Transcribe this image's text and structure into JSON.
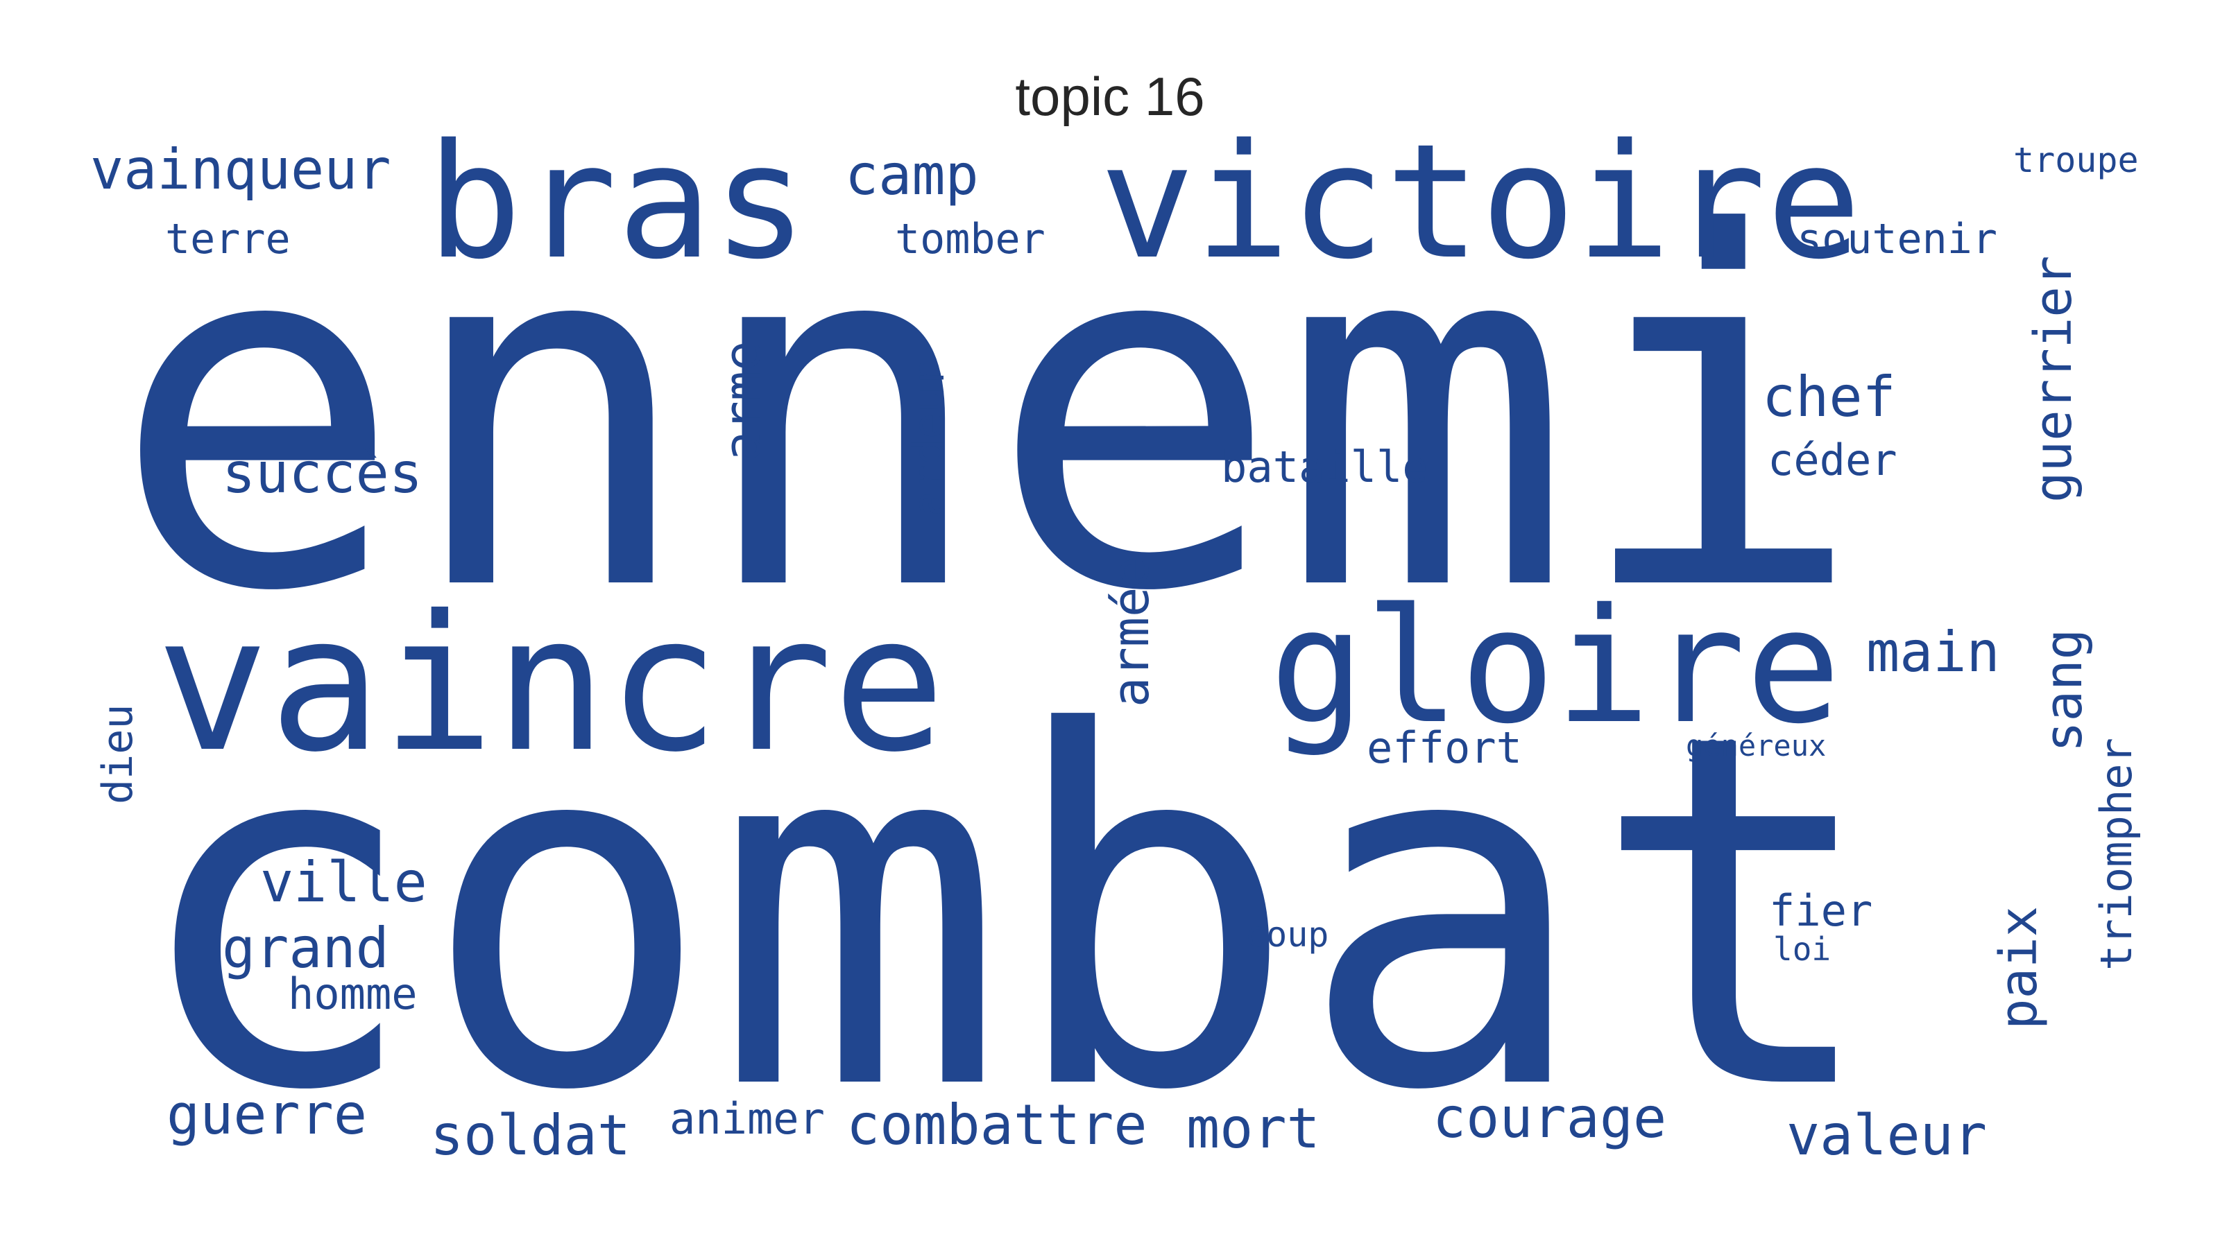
{
  "title": "topic 16",
  "color": "#21468f",
  "words": [
    {
      "text": "ennemi",
      "rot": 0
    },
    {
      "text": "combat",
      "rot": 0
    },
    {
      "text": "victoire",
      "rot": 0
    },
    {
      "text": "bras",
      "rot": 0
    },
    {
      "text": "vaincre",
      "rot": 0
    },
    {
      "text": "gloire",
      "rot": 0
    },
    {
      "text": "vainqueur",
      "rot": 0
    },
    {
      "text": "terre",
      "rot": 0
    },
    {
      "text": "camp",
      "rot": 0
    },
    {
      "text": "tomber",
      "rot": 0
    },
    {
      "text": "troupe",
      "rot": 0
    },
    {
      "text": "soutenir",
      "rot": 0
    },
    {
      "text": "guerrier",
      "rot": -90
    },
    {
      "text": "chef",
      "rot": 0
    },
    {
      "text": "céder",
      "rot": 0
    },
    {
      "text": "succès",
      "rot": 0
    },
    {
      "text": "arme",
      "rot": -90
    },
    {
      "text": "ardeur",
      "rot": -90
    },
    {
      "text": "bataille",
      "rot": 0
    },
    {
      "text": "armée",
      "rot": -90
    },
    {
      "text": "main",
      "rot": 0
    },
    {
      "text": "sang",
      "rot": -90
    },
    {
      "text": "effort",
      "rot": 0
    },
    {
      "text": "généreux",
      "rot": 0
    },
    {
      "text": "dieu",
      "rot": -90
    },
    {
      "text": "triompher",
      "rot": -90
    },
    {
      "text": "ville",
      "rot": 0
    },
    {
      "text": "grand",
      "rot": 0
    },
    {
      "text": "homme",
      "rot": 0
    },
    {
      "text": "coup",
      "rot": 0
    },
    {
      "text": "fier",
      "rot": 0
    },
    {
      "text": "loi",
      "rot": 0
    },
    {
      "text": "paix",
      "rot": -90
    },
    {
      "text": "guerre",
      "rot": 0
    },
    {
      "text": "soldat",
      "rot": 0
    },
    {
      "text": "animer",
      "rot": 0
    },
    {
      "text": "combattre",
      "rot": 0
    },
    {
      "text": "mort",
      "rot": 0
    },
    {
      "text": "courage",
      "rot": 0
    },
    {
      "text": "valeur",
      "rot": 0
    }
  ]
}
